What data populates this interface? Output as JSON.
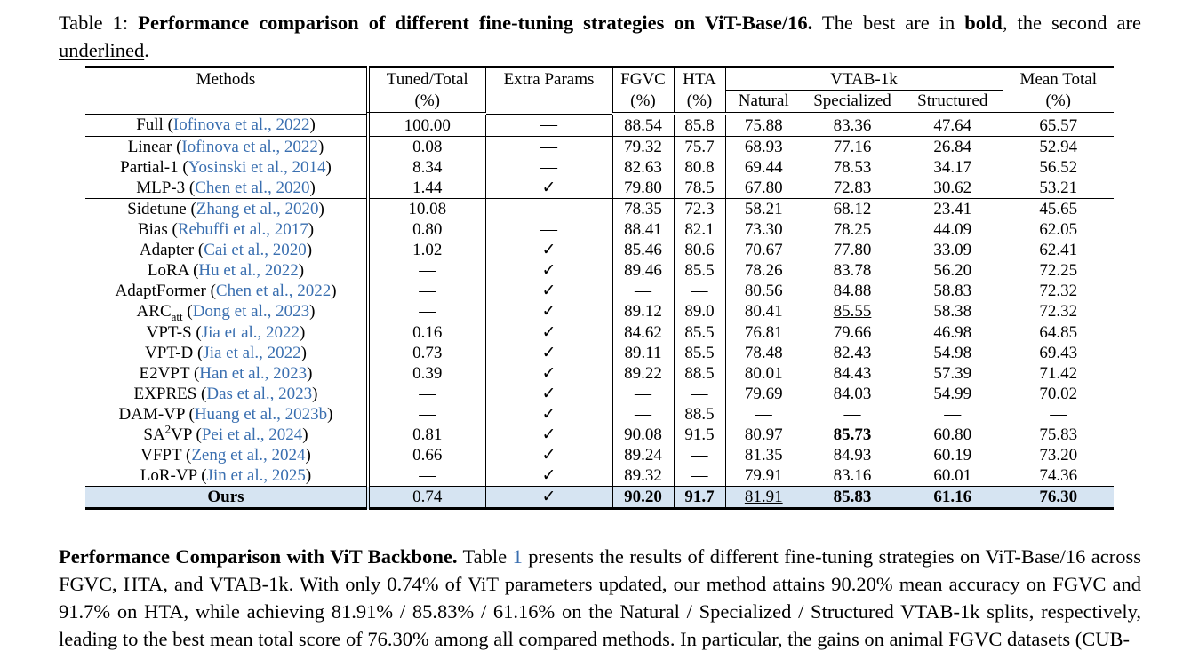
{
  "caption": {
    "label": "Table 1:",
    "title": "Performance comparison of different fine-tuning strategies on ViT-Base/16.",
    "text_pre": " The best are in ",
    "bold_word": "bold",
    "text_mid": ", the second are ",
    "underline_word": "underlined",
    "text_end": "."
  },
  "headers": {
    "methods": "Methods",
    "tuned_1": "Tuned/Total",
    "tuned_2": "(%)",
    "extra": "Extra Params",
    "fgvc_1": "FGVC",
    "fgvc_2": "(%)",
    "hta_1": "HTA",
    "hta_2": "(%)",
    "vtab": "VTAB-1k",
    "natural": "Natural",
    "specialized": "Specialized",
    "structured": "Structured",
    "mean_1": "Mean Total",
    "mean_2": "(%)"
  },
  "rows": [
    {
      "name": "Full",
      "cite": "Iofinova et al., 2022",
      "tuned": "100.00",
      "extra": "—",
      "fgvc": "88.54",
      "hta": "85.8",
      "natural": "75.88",
      "specialized": "83.36",
      "structured": "47.64",
      "mean": "65.57"
    },
    {
      "name": "Linear",
      "cite": "Iofinova et al., 2022",
      "tuned": "0.08",
      "extra": "—",
      "fgvc": "79.32",
      "hta": "75.7",
      "natural": "68.93",
      "specialized": "77.16",
      "structured": "26.84",
      "mean": "52.94"
    },
    {
      "name": "Partial-1",
      "cite": "Yosinski et al., 2014",
      "tuned": "8.34",
      "extra": "—",
      "fgvc": "82.63",
      "hta": "80.8",
      "natural": "69.44",
      "specialized": "78.53",
      "structured": "34.17",
      "mean": "56.52"
    },
    {
      "name": "MLP-3",
      "cite": "Chen et al., 2020",
      "tuned": "1.44",
      "extra": "✓",
      "fgvc": "79.80",
      "hta": "78.5",
      "natural": "67.80",
      "specialized": "72.83",
      "structured": "30.62",
      "mean": "53.21"
    },
    {
      "name": "Sidetune",
      "cite": "Zhang et al., 2020",
      "tuned": "10.08",
      "extra": "—",
      "fgvc": "78.35",
      "hta": "72.3",
      "natural": "58.21",
      "specialized": "68.12",
      "structured": "23.41",
      "mean": "45.65"
    },
    {
      "name": "Bias",
      "cite": "Rebuffi et al., 2017",
      "tuned": "0.80",
      "extra": "—",
      "fgvc": "88.41",
      "hta": "82.1",
      "natural": "73.30",
      "specialized": "78.25",
      "structured": "44.09",
      "mean": "62.05"
    },
    {
      "name": "Adapter",
      "cite": "Cai et al., 2020",
      "tuned": "1.02",
      "extra": "✓",
      "fgvc": "85.46",
      "hta": "80.6",
      "natural": "70.67",
      "specialized": "77.80",
      "structured": "33.09",
      "mean": "62.41"
    },
    {
      "name": "LoRA",
      "cite": "Hu et al., 2022",
      "tuned": "—",
      "extra": "✓",
      "fgvc": "89.46",
      "hta": "85.5",
      "natural": "78.26",
      "specialized": "83.78",
      "structured": "56.20",
      "mean": "72.25"
    },
    {
      "name": "AdaptFormer",
      "cite": "Chen et al., 2022",
      "tuned": "—",
      "extra": "✓",
      "fgvc": "—",
      "hta": "—",
      "natural": "80.56",
      "specialized": "84.88",
      "structured": "58.83",
      "mean": "72.32"
    },
    {
      "name": "ARC",
      "sub": "att",
      "cite": "Dong et al., 2023",
      "tuned": "—",
      "extra": "✓",
      "fgvc": "89.12",
      "hta": "89.0",
      "natural": "80.41",
      "specialized": "85.55",
      "structured": "58.38",
      "mean": "72.32"
    },
    {
      "name": "VPT-S",
      "cite": "Jia et al., 2022",
      "tuned": "0.16",
      "extra": "✓",
      "fgvc": "84.62",
      "hta": "85.5",
      "natural": "76.81",
      "specialized": "79.66",
      "structured": "46.98",
      "mean": "64.85"
    },
    {
      "name": "VPT-D",
      "cite": "Jia et al., 2022",
      "tuned": "0.73",
      "extra": "✓",
      "fgvc": "89.11",
      "hta": "85.5",
      "natural": "78.48",
      "specialized": "82.43",
      "structured": "54.98",
      "mean": "69.43"
    },
    {
      "name": "E2VPT",
      "cite": "Han et al., 2023",
      "tuned": "0.39",
      "extra": "✓",
      "fgvc": "89.22",
      "hta": "88.5",
      "natural": "80.01",
      "specialized": "84.43",
      "structured": "57.39",
      "mean": "71.42"
    },
    {
      "name": "EXPRES",
      "cite": "Das et al., 2023",
      "tuned": "—",
      "extra": "✓",
      "fgvc": "—",
      "hta": "—",
      "natural": "79.69",
      "specialized": "84.03",
      "structured": "54.99",
      "mean": "70.02"
    },
    {
      "name": "DAM-VP",
      "cite": "Huang et al., 2023b",
      "tuned": "—",
      "extra": "✓",
      "fgvc": "—",
      "hta": "88.5",
      "natural": "—",
      "specialized": "—",
      "structured": "—",
      "mean": "—"
    },
    {
      "name": "SA",
      "sup": "2",
      "name_end": "VP",
      "cite": "Pei et al., 2024",
      "tuned": "0.81",
      "extra": "✓",
      "fgvc": "90.08",
      "hta": "91.5",
      "natural": "80.97",
      "specialized": "85.73",
      "structured": "60.80",
      "mean": "75.83"
    },
    {
      "name": "VFPT",
      "cite": "Zeng et al., 2024",
      "tuned": "0.66",
      "extra": "✓",
      "fgvc": "89.24",
      "hta": "—",
      "natural": "81.35",
      "specialized": "84.93",
      "structured": "60.19",
      "mean": "73.20"
    },
    {
      "name": "LoR-VP",
      "cite": "Jin et al., 2025",
      "tuned": "—",
      "extra": "✓",
      "fgvc": "89.32",
      "hta": "—",
      "natural": "79.91",
      "specialized": "83.16",
      "structured": "60.01",
      "mean": "74.36"
    }
  ],
  "ours": {
    "name": "Ours",
    "tuned": "0.74",
    "extra": "✓",
    "fgvc": "90.20",
    "hta": "91.7",
    "natural": "81.91",
    "specialized": "85.83",
    "structured": "61.16",
    "mean": "76.30"
  },
  "body": {
    "heading": "Performance Comparison with ViT Backbone.",
    "pre_ref": " Table ",
    "ref": "1",
    "text": " presents the results of different fine-tuning strategies on ViT-Base/16 across FGVC, HTA, and VTAB-1k. With only 0.74% of ViT parameters updated, our method attains 90.20% mean accuracy on FGVC and 91.7% on HTA, while achieving 81.91% / 85.83% / 61.16% on the Natural / Specialized / Structured VTAB-1k splits, respectively, leading to the best mean total score of 76.30% among all compared methods. In particular, the gains on animal FGVC datasets (CUB-"
  }
}
